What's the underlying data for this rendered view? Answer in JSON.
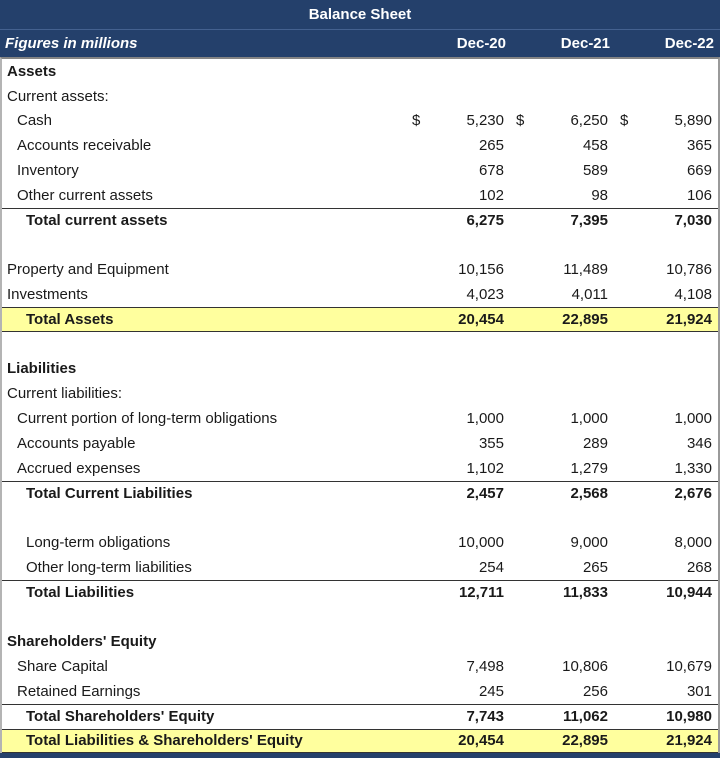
{
  "header": {
    "title": "Balance Sheet",
    "subtitle": "Figures in millions",
    "columns": [
      "Dec-20",
      "Dec-21",
      "Dec-22"
    ]
  },
  "currency_symbol": "$",
  "colors": {
    "header_navy": "#24406B",
    "highlight_yellow": "#FFFF9E",
    "text": "#1A1A1A",
    "total_border": "#333333"
  },
  "rows": [
    {
      "type": "section",
      "label": "Assets",
      "values": [
        "",
        "",
        ""
      ]
    },
    {
      "type": "label",
      "label": "Current assets:",
      "values": [
        "",
        "",
        ""
      ]
    },
    {
      "type": "item",
      "label": "Cash",
      "dollar": true,
      "values": [
        "5,230",
        "6,250",
        "5,890"
      ]
    },
    {
      "type": "item",
      "label": "Accounts receivable",
      "values": [
        "265",
        "458",
        "365"
      ]
    },
    {
      "type": "item",
      "label": "Inventory",
      "values": [
        "678",
        "589",
        "669"
      ]
    },
    {
      "type": "item",
      "label": "Other current assets",
      "values": [
        "102",
        "98",
        "106"
      ]
    },
    {
      "type": "total",
      "label": "Total current assets",
      "values": [
        "6,275",
        "7,395",
        "7,030"
      ]
    },
    {
      "type": "blank",
      "label": "",
      "values": [
        "",
        "",
        ""
      ]
    },
    {
      "type": "label",
      "label": "Property and Equipment",
      "values": [
        "10,156",
        "11,489",
        "10,786"
      ]
    },
    {
      "type": "label",
      "label": "Investments",
      "values": [
        "4,023",
        "4,011",
        "4,108"
      ]
    },
    {
      "type": "total_yellow",
      "label": "Total Assets",
      "values": [
        "20,454",
        "22,895",
        "21,924"
      ]
    },
    {
      "type": "blank",
      "label": "",
      "values": [
        "",
        "",
        ""
      ]
    },
    {
      "type": "section",
      "label": "Liabilities",
      "values": [
        "",
        "",
        ""
      ]
    },
    {
      "type": "label",
      "label": "Current liabilities:",
      "values": [
        "",
        "",
        ""
      ]
    },
    {
      "type": "item",
      "label": "Current portion of long-term obligations",
      "values": [
        "1,000",
        "1,000",
        "1,000"
      ]
    },
    {
      "type": "item",
      "label": "Accounts payable",
      "values": [
        "355",
        "289",
        "346"
      ]
    },
    {
      "type": "item",
      "label": "Accrued expenses",
      "values": [
        "1,102",
        "1,279",
        "1,330"
      ]
    },
    {
      "type": "total",
      "label": "Total Current Liabilities",
      "values": [
        "2,457",
        "2,568",
        "2,676"
      ]
    },
    {
      "type": "blank",
      "label": "",
      "values": [
        "",
        "",
        ""
      ]
    },
    {
      "type": "item2",
      "label": "Long-term obligations",
      "values": [
        "10,000",
        "9,000",
        "8,000"
      ]
    },
    {
      "type": "item2",
      "label": "Other long-term liabilities",
      "values": [
        "254",
        "265",
        "268"
      ]
    },
    {
      "type": "total",
      "label": "Total Liabilities",
      "values": [
        "12,711",
        "11,833",
        "10,944"
      ]
    },
    {
      "type": "blank",
      "label": "",
      "values": [
        "",
        "",
        ""
      ]
    },
    {
      "type": "section",
      "label": "Shareholders' Equity",
      "values": [
        "",
        "",
        ""
      ]
    },
    {
      "type": "item",
      "label": "Share Capital",
      "values": [
        "7,498",
        "10,806",
        "10,679"
      ]
    },
    {
      "type": "item",
      "label": "Retained Earnings",
      "values": [
        "245",
        "256",
        "301"
      ]
    },
    {
      "type": "total",
      "label": "Total Shareholders' Equity",
      "values": [
        "7,743",
        "11,062",
        "10,980"
      ]
    },
    {
      "type": "total_yellow",
      "label": "Total Liabilities & Shareholders' Equity",
      "values": [
        "20,454",
        "22,895",
        "21,924"
      ]
    }
  ]
}
